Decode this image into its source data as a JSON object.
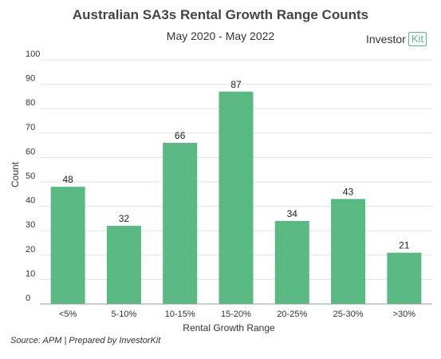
{
  "chart_data": {
    "type": "bar",
    "title": "Australian SA3s Rental Growth Range Counts",
    "subtitle": "May 2020 - May 2022",
    "xlabel": "Rental Growth Range",
    "ylabel": "Count",
    "ylim": [
      0,
      100
    ],
    "yticks": [
      0,
      10,
      20,
      30,
      40,
      50,
      60,
      70,
      80,
      90,
      100
    ],
    "categories": [
      "<5%",
      "5-10%",
      "10-15%",
      "15-20%",
      "20-25%",
      "25-30%",
      ">30%"
    ],
    "values": [
      48,
      32,
      66,
      87,
      34,
      43,
      21
    ],
    "bar_color": "#5ab883",
    "grid": true,
    "source": "Source: APM | Prepared by InvestorKit"
  },
  "logo": {
    "text": "Investor",
    "box_text": "Kit"
  }
}
